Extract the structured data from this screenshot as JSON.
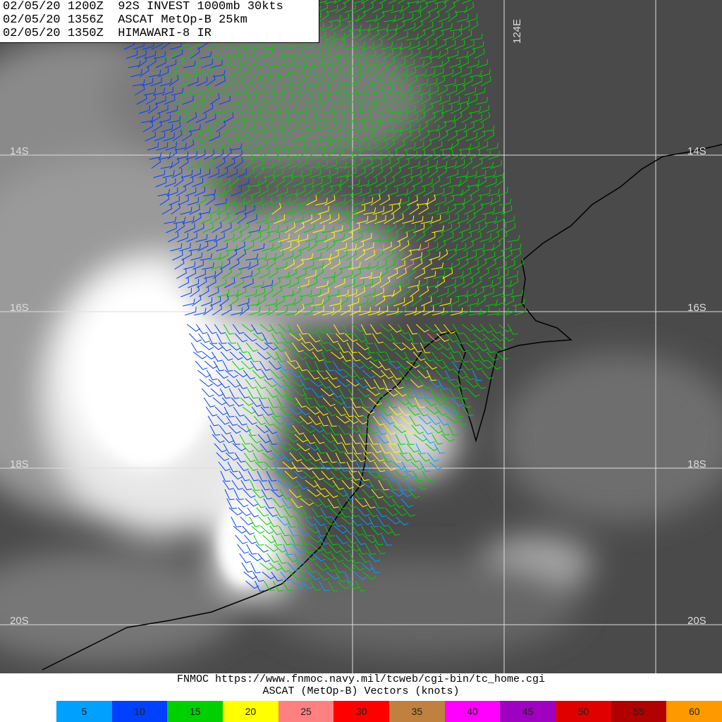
{
  "header": {
    "lines": [
      "02/05/20 1200Z  92S INVEST 1000mb 30kts",
      "02/05/20 1356Z  ASCAT MetOp-B 25km",
      "02/05/20 1350Z  HIMAWARI-8 IR"
    ]
  },
  "map": {
    "latitude_labels": [
      "14S",
      "16S",
      "18S",
      "20S"
    ],
    "longitude_label": "124E"
  },
  "footer": {
    "source": "FNMOC https://www.fnmoc.navy.mil/tcweb/cgi-bin/tc_home.cgi",
    "caption": "ASCAT (MetOp-B) Vectors (knots)"
  },
  "legend": {
    "items": [
      {
        "value": 5,
        "color": "#00a0ff"
      },
      {
        "value": 10,
        "color": "#0040ff"
      },
      {
        "value": 15,
        "color": "#00d000"
      },
      {
        "value": 20,
        "color": "#ffff00"
      },
      {
        "value": 25,
        "color": "#ff8080"
      },
      {
        "value": 30,
        "color": "#ff0000"
      },
      {
        "value": 35,
        "color": "#c08040"
      },
      {
        "value": 40,
        "color": "#ff00ff"
      },
      {
        "value": 45,
        "color": "#a000c0"
      },
      {
        "value": 50,
        "color": "#e00000"
      },
      {
        "value": 55,
        "color": "#b00000"
      },
      {
        "value": 60,
        "color": "#ff9900"
      }
    ]
  }
}
